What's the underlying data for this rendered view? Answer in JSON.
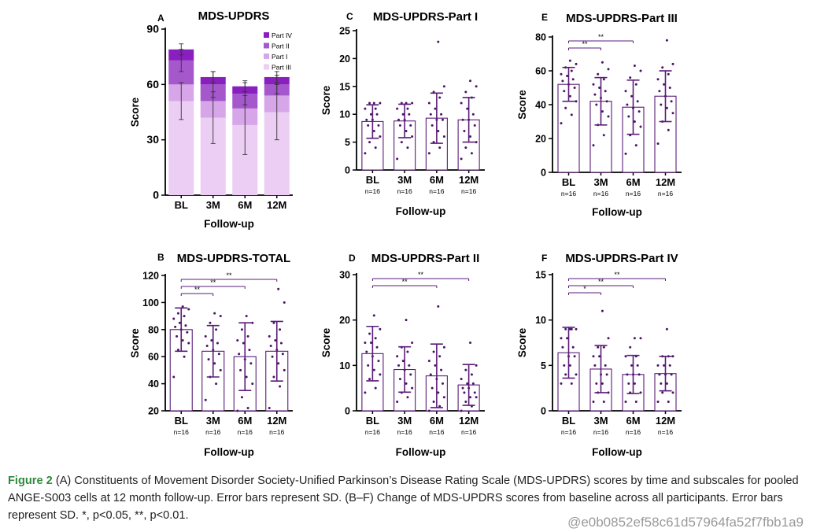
{
  "figure": {
    "caption_label": "Figure 2",
    "caption_text": "(A) Constituents of Movement Disorder Society-Unified Parkinson’s Disease Rating Scale (MDS-UPDRS) scores by time and subscales for pooled ANGE-S003 cells at 12 month follow-up. Error bars represent SD. (B–F) Change of MDS-UPDRS scores from baseline across all participants. Error bars represent SD. *, p<0.05, **, p<0.01.",
    "watermark_id": "@e0b0852ef58c61d57964fa52f7fbb1a9"
  },
  "colors": {
    "part_iv": "#8a1fbf",
    "part_ii": "#a458cc",
    "part_i": "#d7a6e8",
    "part_iii": "#eccdf4",
    "bar_outline": "#5a1c78",
    "dot": "#4a1466",
    "error": "#5a1c78",
    "sig_line": "#5a1c78"
  },
  "chart_data": [
    {
      "panel": "A",
      "type": "bar",
      "stacked": true,
      "title": "MDS-UPDRS",
      "xlabel": "Follow-up",
      "ylabel": "Score",
      "categories": [
        "BL",
        "3M",
        "6M",
        "12M"
      ],
      "ylim": [
        0,
        90
      ],
      "yticks": [
        0,
        30,
        60,
        90
      ],
      "legend_position": "top-right",
      "series": [
        {
          "name": "Part III",
          "values": [
            51,
            42,
            38,
            45
          ]
        },
        {
          "name": "Part I",
          "values": [
            9,
            9,
            9,
            9
          ]
        },
        {
          "name": "Part II",
          "values": [
            13,
            9,
            8,
            6
          ]
        },
        {
          "name": "Part IV",
          "values": [
            6,
            4,
            4,
            4
          ]
        }
      ],
      "legend_order": [
        "Part IV",
        "Part II",
        "Part I",
        "Part III"
      ],
      "error": [
        {
          "values": [
            51,
            42,
            38,
            45
          ],
          "sd": [
            10,
            14,
            16,
            15
          ]
        },
        {
          "values": [
            73,
            60,
            55,
            60
          ],
          "sd": [
            6,
            7,
            6,
            5
          ]
        },
        {
          "values": [
            79,
            64,
            59,
            64
          ],
          "sd": [
            3,
            3,
            3,
            3
          ]
        }
      ]
    },
    {
      "panel": "B",
      "type": "bar",
      "title": "MDS-UPDRS-TOTAL",
      "xlabel": "Follow-up",
      "ylabel": "Score",
      "categories": [
        "BL",
        "3M",
        "6M",
        "12M"
      ],
      "n_labels": [
        "n=16",
        "n=16",
        "n=16",
        "n=16"
      ],
      "values": [
        80,
        64,
        60,
        64
      ],
      "sd": [
        16,
        19,
        25,
        22
      ],
      "ylim": [
        20,
        120
      ],
      "yticks": [
        20,
        40,
        60,
        80,
        100,
        120
      ],
      "points": [
        [
          45,
          60,
          65,
          70,
          72,
          75,
          78,
          80,
          82,
          83,
          85,
          88,
          90,
          92,
          95,
          97
        ],
        [
          28,
          40,
          45,
          50,
          55,
          58,
          62,
          65,
          68,
          70,
          72,
          75,
          80,
          85,
          90,
          92
        ],
        [
          20,
          22,
          30,
          40,
          45,
          50,
          55,
          58,
          62,
          65,
          70,
          72,
          75,
          80,
          85,
          90
        ],
        [
          22,
          38,
          45,
          50,
          55,
          60,
          62,
          65,
          68,
          70,
          72,
          75,
          80,
          85,
          100,
          110
        ]
      ],
      "sig": [
        {
          "from": 0,
          "to": 1,
          "label": "**"
        },
        {
          "from": 0,
          "to": 2,
          "label": "**"
        },
        {
          "from": 0,
          "to": 3,
          "label": "**"
        }
      ]
    },
    {
      "panel": "C",
      "type": "bar",
      "title": "MDS-UPDRS-Part I",
      "xlabel": "Follow-up",
      "ylabel": "Score",
      "categories": [
        "BL",
        "3M",
        "6M",
        "12M"
      ],
      "n_labels": [
        "n=16",
        "n=16",
        "n=16",
        "n=16"
      ],
      "values": [
        8.7,
        8.8,
        9.3,
        9.0
      ],
      "sd": [
        3,
        3,
        4.5,
        4
      ],
      "ylim": [
        0,
        25
      ],
      "yticks": [
        0,
        5,
        10,
        15,
        20,
        25
      ],
      "points": [
        [
          3,
          4,
          5,
          6,
          7,
          8,
          8,
          9,
          9,
          10,
          10,
          11,
          11,
          12,
          12,
          12
        ],
        [
          2,
          4,
          5,
          6,
          7,
          8,
          8,
          9,
          9,
          10,
          10,
          11,
          11,
          12,
          12,
          12
        ],
        [
          3,
          4,
          5,
          6,
          7,
          8,
          9,
          9,
          10,
          10,
          11,
          12,
          13,
          14,
          15,
          23
        ],
        [
          2,
          3,
          4,
          5,
          6,
          7,
          8,
          9,
          9,
          10,
          11,
          12,
          13,
          14,
          15,
          16
        ]
      ],
      "sig": []
    },
    {
      "panel": "D",
      "type": "bar",
      "title": "MDS-UPDRS-Part II",
      "xlabel": "Follow-up",
      "ylabel": "Score",
      "categories": [
        "BL",
        "3M",
        "6M",
        "12M"
      ],
      "n_labels": [
        "n=16",
        "n=16",
        "n=16",
        "n=16"
      ],
      "values": [
        12.6,
        9.1,
        7.7,
        5.7
      ],
      "sd": [
        6,
        5,
        7,
        4.5
      ],
      "ylim": [
        0,
        30
      ],
      "yticks": [
        0,
        10,
        20,
        30
      ],
      "points": [
        [
          4,
          5,
          7,
          8,
          9,
          10,
          11,
          12,
          13,
          14,
          15,
          15,
          16,
          17,
          18,
          21
        ],
        [
          2,
          3,
          4,
          5,
          6,
          7,
          8,
          9,
          10,
          10,
          11,
          12,
          13,
          14,
          15,
          20
        ],
        [
          0,
          1,
          2,
          3,
          4,
          5,
          6,
          7,
          8,
          9,
          10,
          11,
          12,
          13,
          14,
          23
        ],
        [
          0,
          1,
          2,
          3,
          3,
          4,
          4,
          5,
          5,
          6,
          6,
          7,
          8,
          9,
          10,
          15
        ]
      ],
      "sig": [
        {
          "from": 0,
          "to": 2,
          "label": "**"
        },
        {
          "from": 0,
          "to": 3,
          "label": "**"
        }
      ]
    },
    {
      "panel": "E",
      "type": "bar",
      "title": "MDS-UPDRS-Part III",
      "xlabel": "Follow-up",
      "ylabel": "Score",
      "categories": [
        "BL",
        "3M",
        "6M",
        "12M"
      ],
      "n_labels": [
        "n=16",
        "n=16",
        "n=16",
        "n=16"
      ],
      "values": [
        52,
        42,
        38.5,
        45
      ],
      "sd": [
        10,
        14,
        16,
        15
      ],
      "ylim": [
        0,
        80
      ],
      "yticks": [
        0,
        20,
        40,
        60,
        80
      ],
      "points": [
        [
          29,
          34,
          38,
          42,
          45,
          48,
          50,
          52,
          54,
          55,
          57,
          58,
          60,
          62,
          64,
          66
        ],
        [
          16,
          22,
          28,
          33,
          36,
          40,
          42,
          44,
          46,
          48,
          50,
          52,
          55,
          58,
          61,
          65
        ],
        [
          11,
          16,
          22,
          27,
          30,
          33,
          36,
          38,
          40,
          42,
          45,
          48,
          52,
          56,
          60,
          63
        ],
        [
          17,
          25,
          30,
          35,
          38,
          40,
          42,
          45,
          48,
          50,
          52,
          55,
          58,
          62,
          64,
          78
        ]
      ],
      "sig": [
        {
          "from": 0,
          "to": 1,
          "label": "**"
        },
        {
          "from": 0,
          "to": 2,
          "label": "**"
        }
      ]
    },
    {
      "panel": "F",
      "type": "bar",
      "title": "MDS-UPDRS-Part IV",
      "xlabel": "Follow-up",
      "ylabel": "Score",
      "categories": [
        "BL",
        "3M",
        "6M",
        "12M"
      ],
      "n_labels": [
        "n=16",
        "n=16",
        "n=16",
        "n=16"
      ],
      "values": [
        6.4,
        4.6,
        4.0,
        4.1
      ],
      "sd": [
        2.8,
        2.6,
        2.1,
        1.9
      ],
      "ylim": [
        0,
        15
      ],
      "yticks": [
        0,
        5,
        10,
        15
      ],
      "points": [
        [
          3,
          3,
          4,
          4,
          5,
          5,
          6,
          6,
          7,
          7,
          8,
          8,
          9,
          9,
          9,
          9
        ],
        [
          1,
          1,
          2,
          2,
          3,
          3,
          4,
          4,
          5,
          5,
          6,
          6,
          7,
          7,
          8,
          11
        ],
        [
          1,
          1,
          2,
          2,
          3,
          3,
          4,
          4,
          4,
          5,
          5,
          6,
          6,
          7,
          8,
          8
        ],
        [
          1,
          1,
          2,
          2,
          3,
          3,
          4,
          4,
          4,
          5,
          5,
          5,
          6,
          6,
          6,
          9
        ]
      ],
      "sig": [
        {
          "from": 0,
          "to": 1,
          "label": "*"
        },
        {
          "from": 0,
          "to": 2,
          "label": "**"
        },
        {
          "from": 0,
          "to": 3,
          "label": "**"
        }
      ]
    }
  ]
}
